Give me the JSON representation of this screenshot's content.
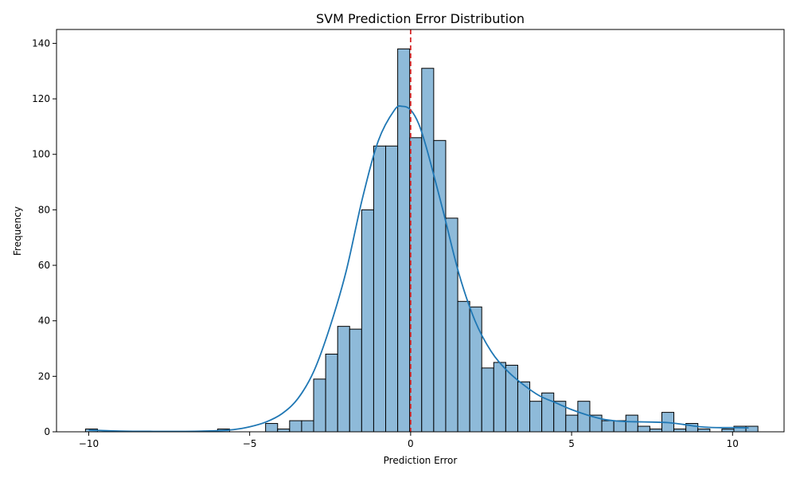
{
  "chart_data": {
    "type": "bar",
    "title": "SVM Prediction Error Distribution",
    "xlabel": "Prediction Error",
    "ylabel": "Frequency",
    "xlim": [
      -11,
      11.6
    ],
    "ylim": [
      0,
      145
    ],
    "x_ticks": [
      -10,
      -5,
      0,
      5,
      10
    ],
    "x_tick_labels": [
      "−10",
      "−5",
      "0",
      "5",
      "10"
    ],
    "y_ticks": [
      0,
      20,
      40,
      60,
      80,
      100,
      120,
      140
    ],
    "y_tick_labels": [
      "0",
      "20",
      "40",
      "60",
      "80",
      "100",
      "120",
      "140"
    ],
    "bin_start": -10.1,
    "bin_width": 0.373,
    "counts": [
      1,
      0,
      0,
      0,
      0,
      0,
      0,
      0,
      0,
      0,
      0,
      1,
      0,
      0,
      0,
      3,
      1,
      4,
      4,
      19,
      28,
      38,
      37,
      80,
      103,
      103,
      138,
      106,
      131,
      105,
      77,
      47,
      45,
      23,
      25,
      24,
      18,
      11,
      14,
      11,
      6,
      11,
      6,
      4,
      4,
      6,
      2,
      1,
      7,
      1,
      3,
      1,
      0,
      1,
      2,
      2
    ],
    "bar_color": "#8ebad9",
    "bar_edge_color": "#000000",
    "reference_line": {
      "x": 0,
      "color": "#d62728",
      "style": "dashed"
    },
    "kde": {
      "color": "#1f77b4",
      "points": [
        [
          -10,
          0.6
        ],
        [
          -9,
          0.25
        ],
        [
          -8,
          0.15
        ],
        [
          -7,
          0.15
        ],
        [
          -6,
          0.4
        ],
        [
          -5.5,
          0.8
        ],
        [
          -5,
          1.8
        ],
        [
          -4.5,
          3.5
        ],
        [
          -4,
          6.5
        ],
        [
          -3.5,
          12
        ],
        [
          -3,
          22
        ],
        [
          -2.5,
          38
        ],
        [
          -2,
          58
        ],
        [
          -1.5,
          84
        ],
        [
          -1,
          105
        ],
        [
          -0.5,
          116
        ],
        [
          -0.25,
          117.3
        ],
        [
          0,
          116
        ],
        [
          0.25,
          111
        ],
        [
          0.5,
          102
        ],
        [
          1,
          80
        ],
        [
          1.5,
          57
        ],
        [
          2,
          40
        ],
        [
          2.5,
          29
        ],
        [
          3,
          22
        ],
        [
          3.5,
          17
        ],
        [
          4,
          13
        ],
        [
          4.5,
          10.5
        ],
        [
          5,
          8
        ],
        [
          5.5,
          6
        ],
        [
          6,
          4.5
        ],
        [
          6.5,
          3.8
        ],
        [
          7,
          3.6
        ],
        [
          7.5,
          3.5
        ],
        [
          8,
          3.3
        ],
        [
          8.5,
          2.6
        ],
        [
          9,
          1.8
        ],
        [
          9.5,
          1.5
        ],
        [
          10,
          1.5
        ],
        [
          10.5,
          1.4
        ]
      ]
    }
  }
}
